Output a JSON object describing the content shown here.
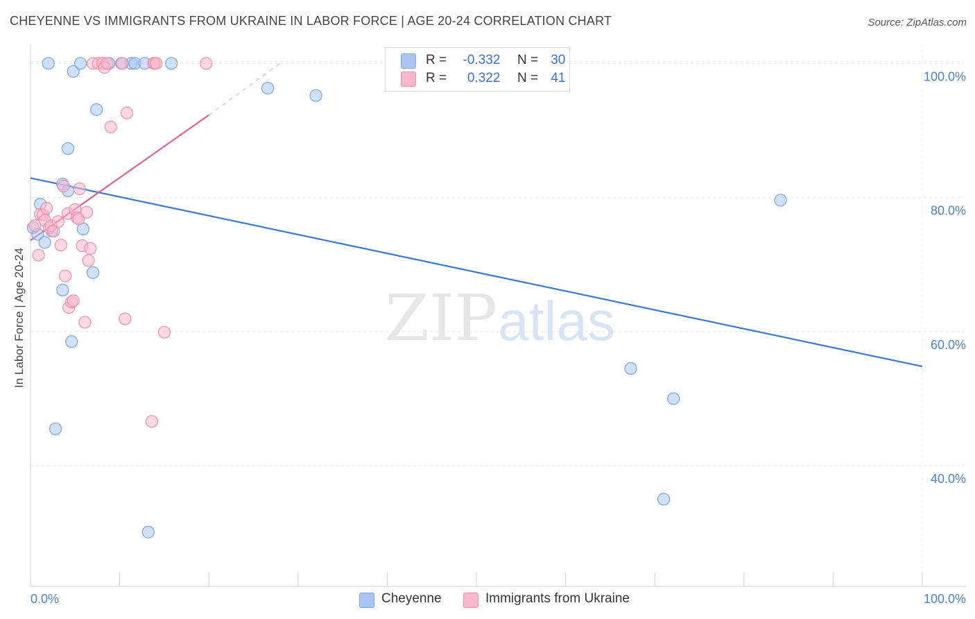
{
  "title": "CHEYENNE VS IMMIGRANTS FROM UKRAINE IN LABOR FORCE | AGE 20-24 CORRELATION CHART",
  "source": "Source: ZipAtlas.com",
  "watermark": {
    "zip": "ZIP",
    "atlas": "atlas"
  },
  "legend": {
    "r_label": "R =",
    "n_label": "N =",
    "series": [
      {
        "name": "Cheyenne",
        "r": "-0.332",
        "n": "30",
        "color": "#a8c6f0",
        "stroke": "#7aa3e0"
      },
      {
        "name": "Immigrants from Ukraine",
        "r": "0.322",
        "n": "41",
        "color": "#f7b8cb",
        "stroke": "#ec8fab"
      }
    ]
  },
  "chart_data": {
    "type": "scatter",
    "title": "CHEYENNE VS IMMIGRANTS FROM UKRAINE IN LABOR FORCE | AGE 20-24 CORRELATION CHART",
    "xlabel": "",
    "ylabel": "In Labor Force | Age 20-24",
    "xlim": [
      0,
      100
    ],
    "ylim": [
      22,
      102
    ],
    "x_tick_labels": [
      "0.0%",
      "100.0%"
    ],
    "y_ticks": [
      40,
      60,
      80,
      100
    ],
    "y_tick_labels": [
      "40.0%",
      "60.0%",
      "80.0%",
      "100.0%"
    ],
    "grid": true,
    "series": [
      {
        "name": "Cheyenne",
        "color": "#a8c6f0",
        "line_color": "#3a78d0",
        "trend": {
          "x": [
            0,
            100
          ],
          "y": [
            82.9,
            54.8
          ]
        },
        "points": [
          [
            0.3,
            75.5
          ],
          [
            0.8,
            74.5
          ],
          [
            1.1,
            79
          ],
          [
            1.6,
            73.3
          ],
          [
            2.4,
            75
          ],
          [
            3.6,
            82
          ],
          [
            4.2,
            81
          ],
          [
            5.9,
            75.3
          ],
          [
            2.8,
            45.5
          ],
          [
            3.6,
            66.2
          ],
          [
            4.6,
            58.5
          ],
          [
            7.0,
            68.8
          ],
          [
            4.2,
            87.3
          ],
          [
            4.8,
            98.8
          ],
          [
            5.6,
            100
          ],
          [
            7.4,
            93.1
          ],
          [
            8.8,
            100
          ],
          [
            10.2,
            100
          ],
          [
            11.3,
            100
          ],
          [
            11.7,
            100
          ],
          [
            12.8,
            100
          ],
          [
            15.8,
            100
          ],
          [
            13.2,
            30.1
          ],
          [
            26.6,
            96.3
          ],
          [
            32.0,
            95.2
          ],
          [
            84.1,
            79.6
          ],
          [
            72.1,
            50.0
          ],
          [
            67.3,
            54.5
          ],
          [
            71.0,
            35.0
          ],
          [
            2.0,
            100
          ]
        ]
      },
      {
        "name": "Immigrants from Ukraine",
        "color": "#f7b8cb",
        "line_color": "#e0608a",
        "trend": {
          "x": [
            0,
            20
          ],
          "y": [
            73.6,
            92.3
          ]
        },
        "trend_dashed": {
          "x": [
            20,
            28
          ],
          "y": [
            92.3,
            100
          ]
        },
        "points": [
          [
            0.5,
            75.8
          ],
          [
            0.9,
            71.4
          ],
          [
            1.1,
            77.5
          ],
          [
            1.4,
            77.4
          ],
          [
            1.6,
            76.6
          ],
          [
            1.8,
            78.4
          ],
          [
            2.1,
            75.5
          ],
          [
            2.3,
            75.8
          ],
          [
            2.6,
            75
          ],
          [
            3.1,
            76.4
          ],
          [
            3.4,
            72.9
          ],
          [
            3.7,
            81.7
          ],
          [
            3.9,
            68.3
          ],
          [
            4.2,
            77.6
          ],
          [
            4.3,
            63.6
          ],
          [
            4.6,
            64.4
          ],
          [
            4.8,
            64.6
          ],
          [
            5.0,
            78.2
          ],
          [
            5.2,
            77
          ],
          [
            5.4,
            76.8
          ],
          [
            5.5,
            81.3
          ],
          [
            5.8,
            72.8
          ],
          [
            6.1,
            61.4
          ],
          [
            6.3,
            77.8
          ],
          [
            6.5,
            70.6
          ],
          [
            6.7,
            72.4
          ],
          [
            7.0,
            100
          ],
          [
            7.6,
            100
          ],
          [
            8.1,
            100
          ],
          [
            8.3,
            99.4
          ],
          [
            8.6,
            100
          ],
          [
            9.0,
            90.5
          ],
          [
            10.3,
            100
          ],
          [
            10.8,
            92.6
          ],
          [
            10.6,
            61.9
          ],
          [
            13.8,
            100
          ],
          [
            13.9,
            100
          ],
          [
            14.1,
            100
          ],
          [
            15.0,
            59.9
          ],
          [
            13.6,
            46.6
          ],
          [
            19.7,
            100
          ]
        ]
      }
    ]
  }
}
